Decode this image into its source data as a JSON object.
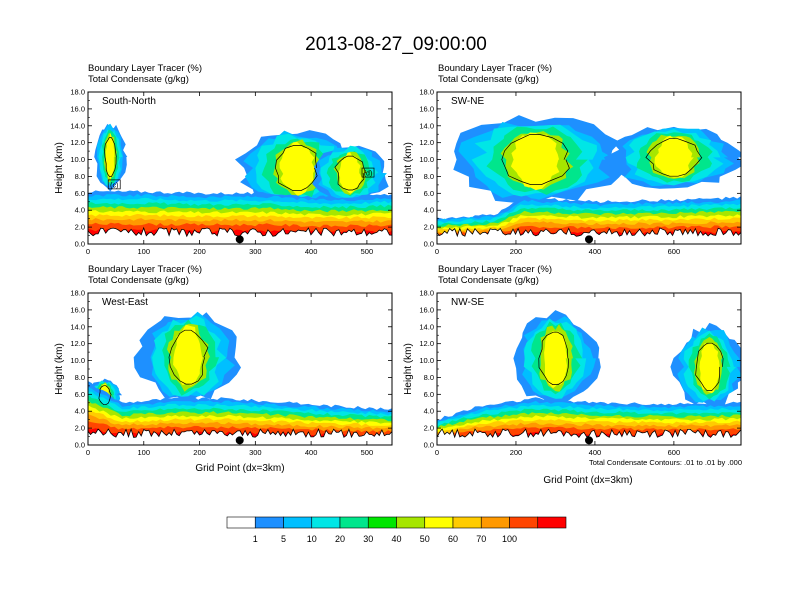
{
  "title": "2013-08-27_09:00:00",
  "subtitle_line1": "Boundary Layer Tracer   (%)",
  "subtitle_line2": "Total Condensate   (g/kg)",
  "ylabel": "Height (km)",
  "xlabel": "Grid Point (dx=3km)",
  "footnote": "Total Condensate Contours: .01 to .01 by .000",
  "colorbar": {
    "colors": [
      "#ffffff",
      "#1e90ff",
      "#00bfff",
      "#00e6e6",
      "#00e68c",
      "#00e600",
      "#a6e600",
      "#ffff00",
      "#ffcc00",
      "#ff9900",
      "#ff4500",
      "#ff0000"
    ],
    "labels": [
      "1",
      "5",
      "10",
      "20",
      "30",
      "40",
      "50",
      "60",
      "70",
      "100"
    ]
  },
  "chart_data": [
    {
      "type": "heatmap",
      "panel_label": "South-North",
      "xlim": [
        0,
        545
      ],
      "ylim": [
        0,
        18
      ],
      "xticks": [
        0,
        100,
        200,
        300,
        400,
        500
      ],
      "yticks": [
        0,
        2,
        4,
        6,
        8,
        10,
        12,
        14,
        16,
        18
      ],
      "ytick_labels": [
        "0.0",
        "2.0",
        "4.0",
        "6.0",
        "8.0",
        "10.0",
        "12.0",
        "14.0",
        "16.0",
        "18.0"
      ],
      "boundary_layer_top": [
        [
          0,
          6.2
        ],
        [
          100,
          6.2
        ],
        [
          200,
          6.0
        ],
        [
          280,
          6.0
        ],
        [
          330,
          6.0
        ],
        [
          400,
          5.6
        ],
        [
          460,
          5.6
        ],
        [
          545,
          5.8
        ]
      ],
      "plume_features": [
        {
          "x_center": 40,
          "base_km": 6.4,
          "top_km": 14.2,
          "half_width": 28
        },
        {
          "x_center": 375,
          "base_km": 4.5,
          "top_km": 13.5,
          "half_width": 110
        },
        {
          "x_center": 470,
          "base_km": 5.0,
          "top_km": 11.8,
          "half_width": 70
        }
      ],
      "markers": [
        {
          "label": "(c)",
          "x": 47,
          "y": 7.0
        },
        {
          "label": "(d)",
          "x": 502,
          "y": 8.4
        }
      ],
      "dot_x": 272
    },
    {
      "type": "heatmap",
      "panel_label": "SW-NE",
      "xlim": [
        0,
        770
      ],
      "ylim": [
        0,
        18
      ],
      "xticks": [
        0,
        200,
        400,
        600
      ],
      "yticks": [
        0,
        2,
        4,
        6,
        8,
        10,
        12,
        14,
        16,
        18
      ],
      "ytick_labels": [
        "0.0",
        "2.0",
        "4.0",
        "6.0",
        "8.0",
        "10.0",
        "12.0",
        "14.0",
        "16.0",
        "18.0"
      ],
      "boundary_layer_top": [
        [
          0,
          3.0
        ],
        [
          150,
          3.5
        ],
        [
          220,
          5.5
        ],
        [
          400,
          5.0
        ],
        [
          600,
          5.2
        ],
        [
          770,
          5.5
        ]
      ],
      "plume_features": [
        {
          "x_center": 250,
          "base_km": 5.0,
          "top_km": 15.0,
          "half_width": 220
        },
        {
          "x_center": 600,
          "base_km": 6.5,
          "top_km": 14.0,
          "half_width": 170
        }
      ],
      "markers": [],
      "dot_x": 385
    },
    {
      "type": "heatmap",
      "panel_label": "West-East",
      "xlim": [
        0,
        545
      ],
      "ylim": [
        0,
        18
      ],
      "xticks": [
        0,
        100,
        200,
        300,
        400,
        500
      ],
      "yticks": [
        0,
        2,
        4,
        6,
        8,
        10,
        12,
        14,
        16,
        18
      ],
      "ytick_labels": [
        "0.0",
        "2.0",
        "4.0",
        "6.0",
        "8.0",
        "10.0",
        "12.0",
        "14.0",
        "16.0",
        "18.0"
      ],
      "boundary_layer_top": [
        [
          0,
          7.5
        ],
        [
          60,
          5.0
        ],
        [
          150,
          5.5
        ],
        [
          250,
          5.5
        ],
        [
          400,
          4.8
        ],
        [
          545,
          4.2
        ]
      ],
      "plume_features": [
        {
          "x_center": 180,
          "base_km": 5.0,
          "top_km": 15.8,
          "half_width": 90
        },
        {
          "x_center": 30,
          "base_km": 4.0,
          "top_km": 7.8,
          "half_width": 30
        }
      ],
      "markers": [],
      "dot_x": 272
    },
    {
      "type": "heatmap",
      "panel_label": "NW-SE",
      "xlim": [
        0,
        770
      ],
      "ylim": [
        0,
        18
      ],
      "xticks": [
        0,
        200,
        400,
        600
      ],
      "yticks": [
        0,
        2,
        4,
        6,
        8,
        10,
        12,
        14,
        16,
        18
      ],
      "ytick_labels": [
        "0.0",
        "2.0",
        "4.0",
        "6.0",
        "8.0",
        "10.0",
        "12.0",
        "14.0",
        "16.0",
        "18.0"
      ],
      "boundary_layer_top": [
        [
          0,
          3.0
        ],
        [
          100,
          4.5
        ],
        [
          250,
          5.5
        ],
        [
          400,
          5.0
        ],
        [
          600,
          4.8
        ],
        [
          770,
          5.0
        ]
      ],
      "plume_features": [
        {
          "x_center": 300,
          "base_km": 5.0,
          "top_km": 15.5,
          "half_width": 110
        },
        {
          "x_center": 690,
          "base_km": 4.5,
          "top_km": 14.0,
          "half_width": 90
        }
      ],
      "markers": [],
      "dot_x": 385
    }
  ]
}
